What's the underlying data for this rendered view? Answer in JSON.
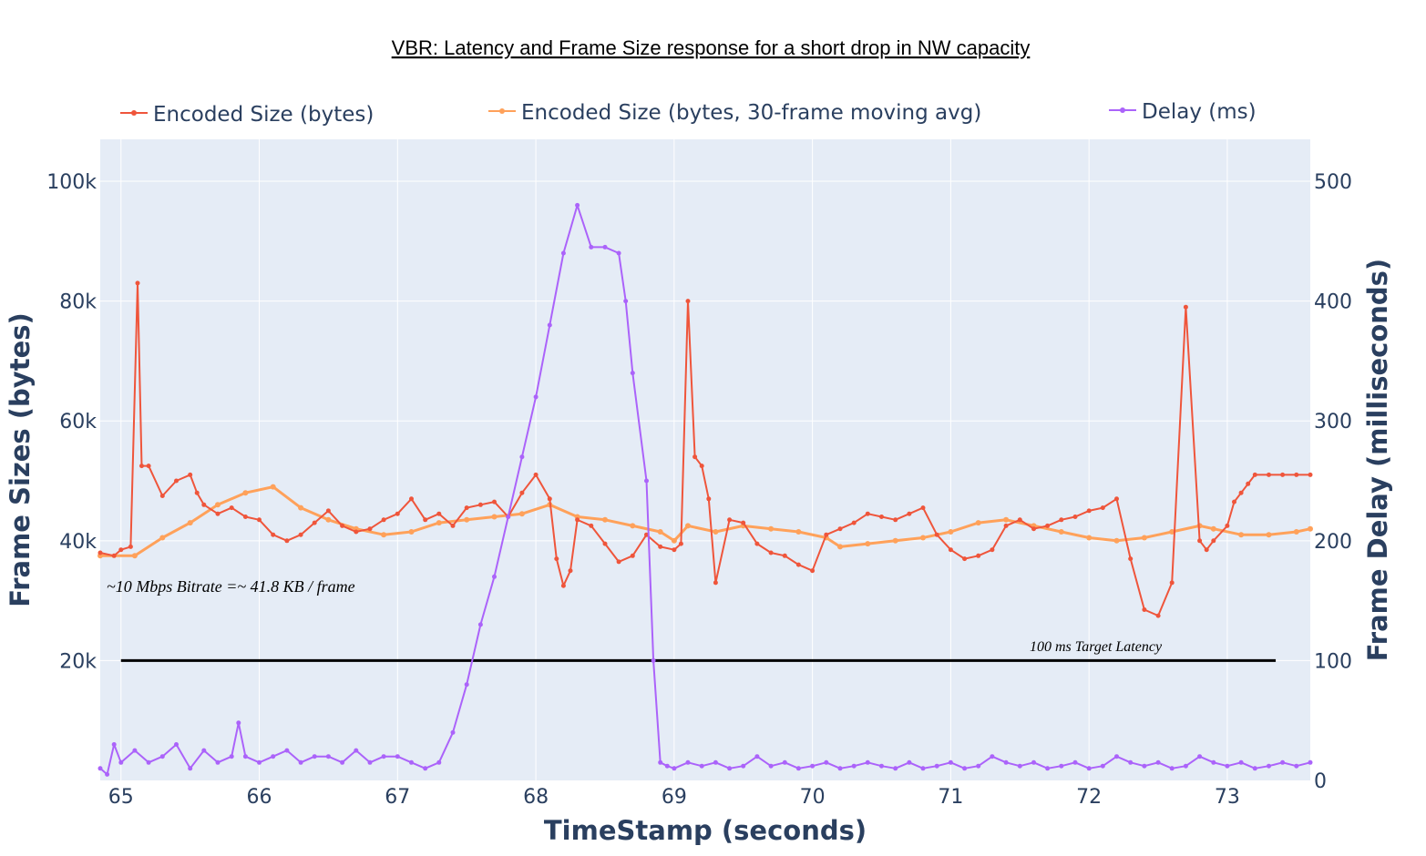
{
  "chart_data": {
    "type": "line",
    "title": "VBR:  Latency and Frame Size response for a short drop in NW capacity",
    "xlabel": "TimeStamp (seconds)",
    "ylabel": "Frame Sizes (bytes)",
    "y2label": "Frame Delay (milliseconds)",
    "xlim": [
      64.85,
      73.6
    ],
    "ylim": [
      0,
      107000
    ],
    "y2lim": [
      0,
      535
    ],
    "x_ticks": [
      "65",
      "66",
      "67",
      "68",
      "69",
      "70",
      "71",
      "72",
      "73"
    ],
    "y_ticks": [
      "20k",
      "40k",
      "60k",
      "80k",
      "100k"
    ],
    "y2_ticks": [
      "0",
      "100",
      "200",
      "300",
      "400",
      "500"
    ],
    "legend_position": "top",
    "grid": true,
    "colors": {
      "encoded": "#ef553b",
      "moving_avg": "#ffa15a",
      "delay": "#ab63fa",
      "plot_bg": "#e5ecf6",
      "target_line": "#000000"
    },
    "annotations": {
      "bitrate": "~10 Mbps Bitrate =~ 41.8 KB / frame",
      "target": "100 ms Target Latency"
    },
    "target_latency": {
      "x_start": 65.0,
      "x_end": 73.35,
      "y2": 100
    },
    "series": [
      {
        "name": "Encoded Size (bytes)",
        "axis": "y",
        "x": [
          64.85,
          64.95,
          65.0,
          65.07,
          65.12,
          65.15,
          65.2,
          65.3,
          65.4,
          65.5,
          65.55,
          65.6,
          65.7,
          65.8,
          65.9,
          66.0,
          66.1,
          66.2,
          66.3,
          66.4,
          66.5,
          66.6,
          66.7,
          66.8,
          66.9,
          67.0,
          67.1,
          67.2,
          67.3,
          67.4,
          67.5,
          67.6,
          67.7,
          67.8,
          67.9,
          68.0,
          68.1,
          68.15,
          68.2,
          68.25,
          68.3,
          68.4,
          68.5,
          68.6,
          68.7,
          68.8,
          68.9,
          69.0,
          69.05,
          69.1,
          69.15,
          69.2,
          69.25,
          69.3,
          69.4,
          69.5,
          69.6,
          69.7,
          69.8,
          69.9,
          70.0,
          70.1,
          70.2,
          70.3,
          70.4,
          70.5,
          70.6,
          70.7,
          70.8,
          70.9,
          71.0,
          71.1,
          71.2,
          71.3,
          71.4,
          71.5,
          71.6,
          71.7,
          71.8,
          71.9,
          72.0,
          72.1,
          72.2,
          72.3,
          72.4,
          72.5,
          72.6,
          72.7,
          72.8,
          72.85,
          72.9,
          73.0,
          73.05,
          73.1,
          73.15,
          73.2,
          73.3,
          73.4,
          73.5,
          73.6
        ],
        "values": [
          38000,
          37500,
          38500,
          39000,
          83000,
          52500,
          52500,
          47500,
          50000,
          51000,
          48000,
          46000,
          44500,
          45500,
          44000,
          43500,
          41000,
          40000,
          41000,
          43000,
          45000,
          42500,
          41500,
          42000,
          43500,
          44500,
          47000,
          43500,
          44500,
          42500,
          45500,
          46000,
          46500,
          44000,
          48000,
          51000,
          47000,
          37000,
          32500,
          35000,
          43500,
          42500,
          39500,
          36500,
          37500,
          41000,
          39000,
          38500,
          39500,
          80000,
          54000,
          52500,
          47000,
          33000,
          43500,
          43000,
          39500,
          38000,
          37500,
          36000,
          35000,
          41000,
          42000,
          43000,
          44500,
          44000,
          43500,
          44500,
          45500,
          41000,
          38500,
          37000,
          37500,
          38500,
          42500,
          43500,
          42000,
          42500,
          43500,
          44000,
          45000,
          45500,
          47000,
          37000,
          28500,
          27500,
          33000,
          79000,
          40000,
          38500,
          40000,
          42500,
          46500,
          48000,
          49500,
          51000,
          51000,
          51000,
          51000,
          51000
        ]
      },
      {
        "name": "Encoded Size (bytes, 30-frame moving avg)",
        "axis": "y",
        "x": [
          64.85,
          65.1,
          65.3,
          65.5,
          65.7,
          65.9,
          66.1,
          66.3,
          66.5,
          66.7,
          66.9,
          67.1,
          67.3,
          67.5,
          67.7,
          67.9,
          68.1,
          68.3,
          68.5,
          68.7,
          68.9,
          69.0,
          69.1,
          69.3,
          69.5,
          69.7,
          69.9,
          70.1,
          70.2,
          70.4,
          70.6,
          70.8,
          71.0,
          71.2,
          71.4,
          71.6,
          71.8,
          72.0,
          72.2,
          72.4,
          72.6,
          72.8,
          72.9,
          73.1,
          73.3,
          73.5,
          73.6
        ],
        "values": [
          37500,
          37500,
          40500,
          43000,
          46000,
          48000,
          49000,
          45500,
          43500,
          42000,
          41000,
          41500,
          43000,
          43500,
          44000,
          44500,
          46000,
          44000,
          43500,
          42500,
          41500,
          40000,
          42500,
          41500,
          42500,
          42000,
          41500,
          40500,
          39000,
          39500,
          40000,
          40500,
          41500,
          43000,
          43500,
          42500,
          41500,
          40500,
          40000,
          40500,
          41500,
          42500,
          42000,
          41000,
          41000,
          41500,
          42000
        ]
      },
      {
        "name": "Delay (ms)",
        "axis": "y2",
        "x": [
          64.85,
          64.9,
          64.95,
          65.0,
          65.1,
          65.2,
          65.3,
          65.4,
          65.5,
          65.6,
          65.7,
          65.8,
          65.85,
          65.9,
          66.0,
          66.1,
          66.2,
          66.3,
          66.4,
          66.5,
          66.6,
          66.7,
          66.8,
          66.9,
          67.0,
          67.1,
          67.2,
          67.3,
          67.4,
          67.5,
          67.6,
          67.7,
          67.8,
          67.9,
          68.0,
          68.1,
          68.2,
          68.3,
          68.4,
          68.5,
          68.6,
          68.65,
          68.7,
          68.8,
          68.85,
          68.9,
          68.95,
          69.0,
          69.1,
          69.2,
          69.3,
          69.4,
          69.5,
          69.6,
          69.7,
          69.8,
          69.9,
          70.0,
          70.1,
          70.2,
          70.3,
          70.4,
          70.5,
          70.6,
          70.7,
          70.8,
          70.9,
          71.0,
          71.1,
          71.2,
          71.3,
          71.4,
          71.5,
          71.6,
          71.7,
          71.8,
          71.9,
          72.0,
          72.1,
          72.2,
          72.3,
          72.4,
          72.5,
          72.6,
          72.7,
          72.8,
          72.9,
          73.0,
          73.1,
          73.2,
          73.3,
          73.4,
          73.5,
          73.6
        ],
        "values": [
          10,
          5,
          30,
          15,
          25,
          15,
          20,
          30,
          10,
          25,
          15,
          20,
          48,
          20,
          15,
          20,
          25,
          15,
          20,
          20,
          15,
          25,
          15,
          20,
          20,
          15,
          10,
          15,
          40,
          80,
          130,
          170,
          220,
          270,
          320,
          380,
          440,
          480,
          445,
          445,
          440,
          400,
          340,
          250,
          100,
          15,
          12,
          10,
          15,
          12,
          15,
          10,
          12,
          20,
          12,
          15,
          10,
          12,
          15,
          10,
          12,
          15,
          12,
          10,
          15,
          10,
          12,
          15,
          10,
          12,
          20,
          15,
          12,
          15,
          10,
          12,
          15,
          10,
          12,
          20,
          15,
          12,
          15,
          10,
          12,
          20,
          15,
          12,
          15,
          10,
          12,
          15,
          12,
          15
        ]
      }
    ]
  }
}
